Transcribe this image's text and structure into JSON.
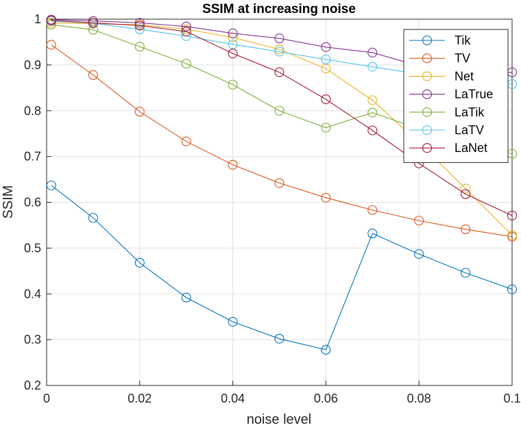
{
  "chart_data": {
    "type": "line",
    "title": "SSIM at increasing noise",
    "xlabel": "noise level",
    "ylabel": "SSIM",
    "xlim": [
      0,
      0.1
    ],
    "ylim": [
      0.2,
      1
    ],
    "xticks": [
      0,
      0.02,
      0.04,
      0.06,
      0.08,
      0.1
    ],
    "xtick_labels": [
      "0",
      "0.02",
      "0.04",
      "0.06",
      "0.08",
      "0.1"
    ],
    "yticks": [
      0.2,
      0.3,
      0.4,
      0.5,
      0.6,
      0.7,
      0.8,
      0.9,
      1
    ],
    "ytick_labels": [
      "0.2",
      "0.3",
      "0.4",
      "0.5",
      "0.6",
      "0.7",
      "0.8",
      "0.9",
      "1"
    ],
    "grid": true,
    "legend_position": "top-right",
    "marker": "circle",
    "x": [
      0.001,
      0.01,
      0.02,
      0.03,
      0.04,
      0.05,
      0.06,
      0.07,
      0.08,
      0.09,
      0.1
    ],
    "series": [
      {
        "name": "Tik",
        "color": "#0072BD",
        "values": [
          0.637,
          0.566,
          0.468,
          0.392,
          0.339,
          0.302,
          0.278,
          0.532,
          0.487,
          0.446,
          0.41
        ]
      },
      {
        "name": "TV",
        "color": "#D95319",
        "values": [
          0.944,
          0.878,
          0.798,
          0.733,
          0.682,
          0.642,
          0.61,
          0.583,
          0.56,
          0.541,
          0.525
        ]
      },
      {
        "name": "Net",
        "color": "#EDB120",
        "values": [
          0.992,
          0.99,
          0.988,
          0.978,
          0.96,
          0.934,
          0.892,
          0.823,
          0.73,
          0.63,
          0.528
        ]
      },
      {
        "name": "LaTrue",
        "color": "#7E2F8E",
        "values": [
          0.999,
          0.996,
          0.992,
          0.984,
          0.969,
          0.958,
          0.939,
          0.927,
          0.898,
          0.885,
          0.884
        ]
      },
      {
        "name": "LaTik",
        "color": "#77AC30",
        "values": [
          0.988,
          0.977,
          0.94,
          0.903,
          0.857,
          0.8,
          0.763,
          0.796,
          0.76,
          0.726,
          0.706
        ]
      },
      {
        "name": "LaTV",
        "color": "#4DBEEE",
        "values": [
          0.996,
          0.991,
          0.978,
          0.963,
          0.945,
          0.929,
          0.912,
          0.896,
          0.88,
          0.866,
          0.858
        ]
      },
      {
        "name": "LaNet",
        "color": "#A2142F",
        "values": [
          0.997,
          0.992,
          0.986,
          0.973,
          0.925,
          0.884,
          0.825,
          0.757,
          0.685,
          0.618,
          0.571
        ]
      }
    ]
  }
}
